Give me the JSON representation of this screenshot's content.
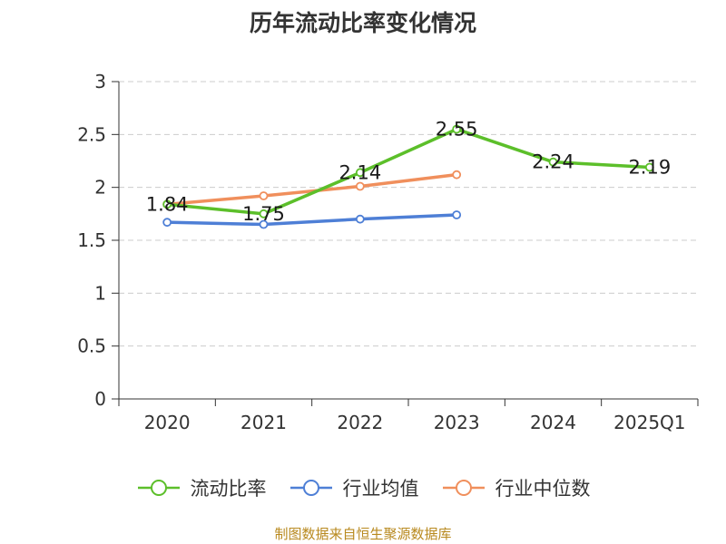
{
  "chart_data": {
    "type": "line",
    "title": "历年流动比率变化情况",
    "categories": [
      "2020",
      "2021",
      "2022",
      "2023",
      "2024",
      "2025Q1"
    ],
    "ylim": [
      0,
      3
    ],
    "yticks": [
      "0",
      "0.5",
      "1",
      "1.5",
      "2",
      "2.5",
      "3"
    ],
    "grid": true,
    "legend_position": "bottom",
    "series": [
      {
        "name": "流动比率",
        "color": "#5cbf2a",
        "values": [
          1.84,
          1.75,
          2.14,
          2.55,
          2.24,
          2.19
        ],
        "labels": [
          "1.84",
          "1.75",
          "2.14",
          "2.55",
          "2.24",
          "2.19"
        ]
      },
      {
        "name": "行业均值",
        "color": "#4e7fd6",
        "values": [
          1.67,
          1.65,
          1.7,
          1.74,
          null,
          null
        ]
      },
      {
        "name": "行业中位数",
        "color": "#f08f5c",
        "values": [
          1.84,
          1.92,
          2.01,
          2.12,
          null,
          null
        ]
      }
    ]
  },
  "source_note": "制图数据来自恒生聚源数据库"
}
